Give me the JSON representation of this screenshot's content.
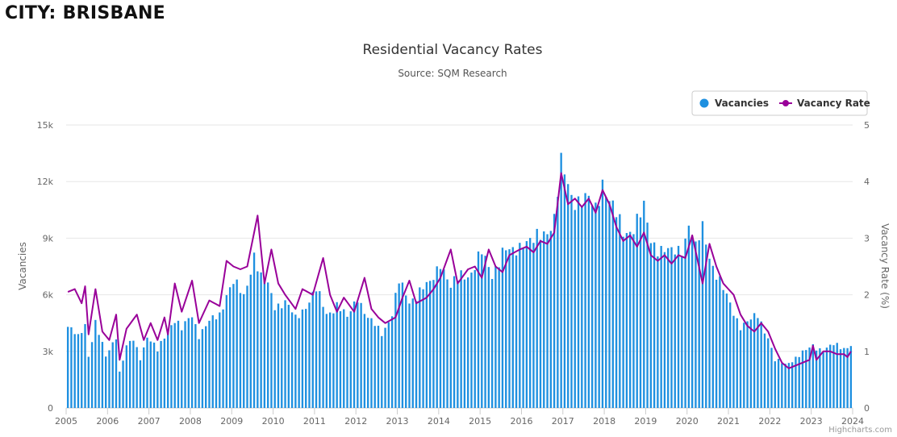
{
  "page": {
    "city_title": "CITY: BRISBANE",
    "credit": "Highcharts.com"
  },
  "colors": {
    "bar": "#1e90e0",
    "line": "#990099",
    "grid": "#e6e6e6",
    "axis_text": "#666666"
  },
  "chart_data": {
    "type": "bar+line",
    "title": "Residential Vacancy Rates",
    "subtitle": "Source: SQM Research",
    "ylabel": "Vacancies",
    "y2label": "Vacancy Rate (%)",
    "ylim": [
      0,
      15000
    ],
    "y2lim": [
      0,
      5
    ],
    "yticks": [
      0,
      3000,
      6000,
      9000,
      12000,
      15000
    ],
    "ytick_labels": [
      "0",
      "3k",
      "6k",
      "9k",
      "12k",
      "15k"
    ],
    "y2ticks": [
      0,
      1,
      2,
      3,
      4,
      5
    ],
    "xlim": [
      "2005-01",
      "2024-01"
    ],
    "xtick_labels": [
      "2005",
      "2006",
      "2007",
      "2008",
      "2009",
      "2010",
      "2011",
      "2012",
      "2013",
      "2014",
      "2015",
      "2016",
      "2017",
      "2018",
      "2019",
      "2020",
      "2021",
      "2022",
      "2023",
      "2024"
    ],
    "legend": {
      "placement": "top-right",
      "items": [
        "Vacancies",
        "Vacancy Rate"
      ]
    },
    "grid": true,
    "frequency": "monthly",
    "start": "2005-01",
    "anchors": {
      "vacancies": [
        [
          "2005-01",
          4300
        ],
        [
          "2005-04",
          3700
        ],
        [
          "2005-06",
          4500
        ],
        [
          "2005-07",
          2800
        ],
        [
          "2005-09",
          4500
        ],
        [
          "2005-12",
          2700
        ],
        [
          "2006-03",
          3900
        ],
        [
          "2006-04",
          1900
        ],
        [
          "2006-06",
          3200
        ],
        [
          "2006-08",
          3600
        ],
        [
          "2006-10",
          2700
        ],
        [
          "2006-12",
          3800
        ],
        [
          "2007-03",
          3000
        ],
        [
          "2007-06",
          4200
        ],
        [
          "2007-08",
          4700
        ],
        [
          "2007-10",
          4100
        ],
        [
          "2008-01",
          5000
        ],
        [
          "2008-03",
          3900
        ],
        [
          "2008-06",
          4500
        ],
        [
          "2008-09",
          5000
        ],
        [
          "2008-11",
          6100
        ],
        [
          "2009-01",
          6600
        ],
        [
          "2009-04",
          5900
        ],
        [
          "2009-07",
          8200
        ],
        [
          "2009-09",
          6800
        ],
        [
          "2009-11",
          6500
        ],
        [
          "2010-01",
          5500
        ],
        [
          "2010-04",
          5600
        ],
        [
          "2010-07",
          4700
        ],
        [
          "2010-10",
          5500
        ],
        [
          "2011-01",
          6200
        ],
        [
          "2011-04",
          5000
        ],
        [
          "2011-07",
          5500
        ],
        [
          "2011-10",
          4700
        ],
        [
          "2012-01",
          6000
        ],
        [
          "2012-04",
          4700
        ],
        [
          "2012-08",
          4000
        ],
        [
          "2012-11",
          5000
        ],
        [
          "2013-01",
          6600
        ],
        [
          "2013-04",
          5700
        ],
        [
          "2013-07",
          6200
        ],
        [
          "2013-10",
          6500
        ],
        [
          "2014-01",
          7900
        ],
        [
          "2014-04",
          6300
        ],
        [
          "2014-07",
          7100
        ],
        [
          "2014-10",
          7200
        ],
        [
          "2015-01",
          8100
        ],
        [
          "2015-04",
          7200
        ],
        [
          "2015-07",
          8200
        ],
        [
          "2015-10",
          8200
        ],
        [
          "2016-01",
          9000
        ],
        [
          "2016-04",
          8700
        ],
        [
          "2016-07",
          9300
        ],
        [
          "2016-10",
          10100
        ],
        [
          "2016-12",
          12700
        ],
        [
          "2017-03",
          11300
        ],
        [
          "2017-07",
          11000
        ],
        [
          "2017-10",
          10500
        ],
        [
          "2017-12",
          12200
        ],
        [
          "2018-03",
          10500
        ],
        [
          "2018-06",
          9300
        ],
        [
          "2018-09",
          9700
        ],
        [
          "2018-12",
          10400
        ],
        [
          "2019-02",
          8900
        ],
        [
          "2019-05",
          8500
        ],
        [
          "2019-08",
          8100
        ],
        [
          "2019-11",
          8500
        ],
        [
          "2020-01",
          9800
        ],
        [
          "2020-03",
          8300
        ],
        [
          "2020-05",
          9500
        ],
        [
          "2020-08",
          7600
        ],
        [
          "2020-11",
          6200
        ],
        [
          "2021-02",
          5100
        ],
        [
          "2021-04",
          4400
        ],
        [
          "2021-07",
          4600
        ],
        [
          "2021-09",
          4900
        ],
        [
          "2021-12",
          3800
        ],
        [
          "2022-02",
          2500
        ],
        [
          "2022-05",
          2300
        ],
        [
          "2022-08",
          2700
        ],
        [
          "2022-11",
          3000
        ],
        [
          "2023-01",
          3300
        ],
        [
          "2023-04",
          3100
        ],
        [
          "2023-07",
          3300
        ],
        [
          "2023-10",
          3200
        ],
        [
          "2023-12",
          3400
        ]
      ],
      "vacancy_rate": [
        [
          "2005-01",
          2.05
        ],
        [
          "2005-03",
          2.1
        ],
        [
          "2005-05",
          1.85
        ],
        [
          "2005-06",
          2.15
        ],
        [
          "2005-07",
          1.3
        ],
        [
          "2005-09",
          2.1
        ],
        [
          "2005-11",
          1.35
        ],
        [
          "2006-01",
          1.2
        ],
        [
          "2006-03",
          1.65
        ],
        [
          "2006-04",
          0.85
        ],
        [
          "2006-06",
          1.4
        ],
        [
          "2006-09",
          1.65
        ],
        [
          "2006-11",
          1.2
        ],
        [
          "2007-01",
          1.5
        ],
        [
          "2007-03",
          1.2
        ],
        [
          "2007-05",
          1.6
        ],
        [
          "2007-06",
          1.3
        ],
        [
          "2007-08",
          2.2
        ],
        [
          "2007-10",
          1.7
        ],
        [
          "2008-01",
          2.25
        ],
        [
          "2008-03",
          1.5
        ],
        [
          "2008-06",
          1.9
        ],
        [
          "2008-09",
          1.8
        ],
        [
          "2008-11",
          2.6
        ],
        [
          "2009-01",
          2.5
        ],
        [
          "2009-03",
          2.45
        ],
        [
          "2009-05",
          2.5
        ],
        [
          "2009-08",
          3.4
        ],
        [
          "2009-10",
          2.2
        ],
        [
          "2009-12",
          2.8
        ],
        [
          "2010-02",
          2.2
        ],
        [
          "2010-04",
          2.0
        ],
        [
          "2010-07",
          1.75
        ],
        [
          "2010-09",
          2.1
        ],
        [
          "2010-12",
          2.0
        ],
        [
          "2011-03",
          2.65
        ],
        [
          "2011-05",
          2.0
        ],
        [
          "2011-07",
          1.7
        ],
        [
          "2011-09",
          1.95
        ],
        [
          "2011-12",
          1.7
        ],
        [
          "2012-03",
          2.3
        ],
        [
          "2012-05",
          1.75
        ],
        [
          "2012-07",
          1.6
        ],
        [
          "2012-09",
          1.5
        ],
        [
          "2012-12",
          1.6
        ],
        [
          "2013-02",
          1.95
        ],
        [
          "2013-04",
          2.25
        ],
        [
          "2013-06",
          1.85
        ],
        [
          "2013-09",
          1.95
        ],
        [
          "2013-11",
          2.1
        ],
        [
          "2014-01",
          2.3
        ],
        [
          "2014-04",
          2.8
        ],
        [
          "2014-06",
          2.2
        ],
        [
          "2014-09",
          2.45
        ],
        [
          "2014-11",
          2.5
        ],
        [
          "2015-01",
          2.3
        ],
        [
          "2015-03",
          2.8
        ],
        [
          "2015-05",
          2.5
        ],
        [
          "2015-07",
          2.4
        ],
        [
          "2015-09",
          2.7
        ],
        [
          "2015-12",
          2.8
        ],
        [
          "2016-02",
          2.85
        ],
        [
          "2016-04",
          2.75
        ],
        [
          "2016-06",
          2.95
        ],
        [
          "2016-08",
          2.9
        ],
        [
          "2016-10",
          3.1
        ],
        [
          "2016-12",
          4.15
        ],
        [
          "2017-02",
          3.6
        ],
        [
          "2017-04",
          3.7
        ],
        [
          "2017-06",
          3.55
        ],
        [
          "2017-08",
          3.7
        ],
        [
          "2017-10",
          3.45
        ],
        [
          "2017-12",
          3.85
        ],
        [
          "2018-02",
          3.6
        ],
        [
          "2018-04",
          3.2
        ],
        [
          "2018-06",
          2.95
        ],
        [
          "2018-08",
          3.05
        ],
        [
          "2018-10",
          2.85
        ],
        [
          "2018-12",
          3.1
        ],
        [
          "2019-02",
          2.7
        ],
        [
          "2019-04",
          2.6
        ],
        [
          "2019-06",
          2.7
        ],
        [
          "2019-08",
          2.55
        ],
        [
          "2019-10",
          2.7
        ],
        [
          "2019-12",
          2.65
        ],
        [
          "2020-02",
          3.05
        ],
        [
          "2020-05",
          2.2
        ],
        [
          "2020-07",
          2.9
        ],
        [
          "2020-09",
          2.5
        ],
        [
          "2020-11",
          2.2
        ],
        [
          "2021-02",
          2.0
        ],
        [
          "2021-04",
          1.65
        ],
        [
          "2021-06",
          1.45
        ],
        [
          "2021-08",
          1.35
        ],
        [
          "2021-10",
          1.5
        ],
        [
          "2021-12",
          1.35
        ],
        [
          "2022-02",
          1.05
        ],
        [
          "2022-04",
          0.8
        ],
        [
          "2022-06",
          0.7
        ],
        [
          "2022-08",
          0.75
        ],
        [
          "2022-10",
          0.8
        ],
        [
          "2022-12",
          0.85
        ],
        [
          "2023-01",
          1.1
        ],
        [
          "2023-02",
          0.85
        ],
        [
          "2023-04",
          1.0
        ],
        [
          "2023-06",
          1.0
        ],
        [
          "2023-08",
          0.95
        ],
        [
          "2023-10",
          0.95
        ],
        [
          "2023-11",
          0.9
        ],
        [
          "2023-12",
          1.0
        ]
      ]
    }
  }
}
